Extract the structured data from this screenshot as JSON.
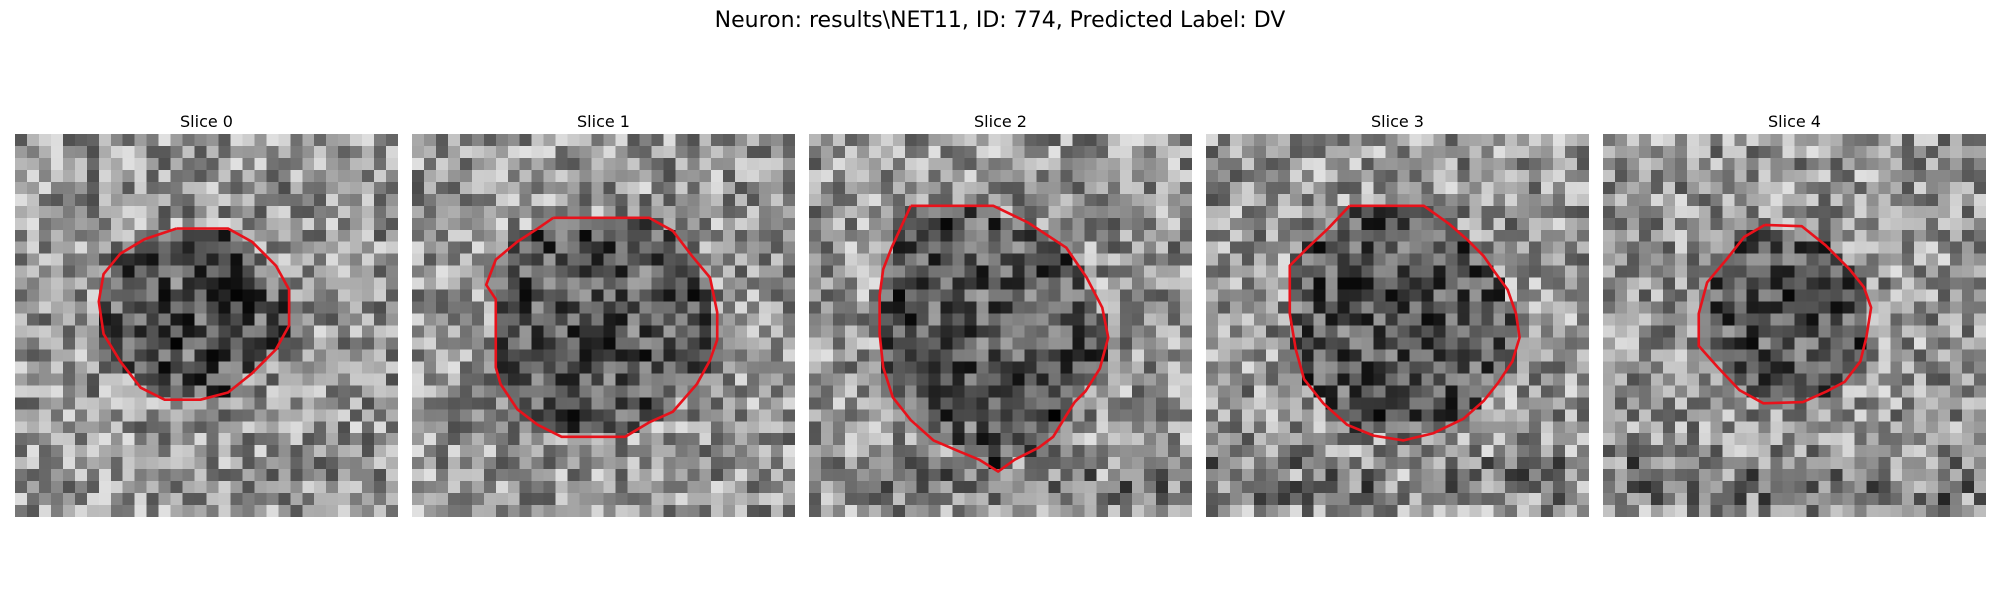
{
  "figure": {
    "title": "Neuron: results\\NET11, ID: 774, Predicted Label: DV",
    "contour_color": "#e8121b",
    "colormap": "gray",
    "grid_size": 32
  },
  "slices": [
    {
      "label": "Slice 0",
      "contour": [
        [
          13.5,
          7.9
        ],
        [
          17.8,
          7.9
        ],
        [
          19.8,
          9.0
        ],
        [
          21.8,
          11.0
        ],
        [
          22.9,
          13.0
        ],
        [
          22.9,
          16.0
        ],
        [
          21.8,
          18.0
        ],
        [
          19.8,
          20.0
        ],
        [
          17.8,
          21.6
        ],
        [
          15.5,
          22.2
        ],
        [
          12.5,
          22.2
        ],
        [
          10.5,
          21.2
        ],
        [
          8.8,
          19.0
        ],
        [
          7.4,
          16.7
        ],
        [
          7.0,
          14.0
        ],
        [
          7.4,
          11.7
        ],
        [
          8.8,
          10.0
        ],
        [
          10.8,
          8.8
        ],
        [
          13.5,
          7.9
        ]
      ]
    },
    {
      "label": "Slice 1",
      "contour": [
        [
          11.8,
          7.0
        ],
        [
          19.8,
          7.0
        ],
        [
          21.8,
          8.1
        ],
        [
          23.4,
          10.2
        ],
        [
          24.9,
          12.0
        ],
        [
          25.5,
          14.9
        ],
        [
          25.5,
          17.2
        ],
        [
          24.9,
          18.9
        ],
        [
          23.8,
          20.9
        ],
        [
          21.8,
          23.2
        ],
        [
          19.8,
          24.1
        ],
        [
          17.8,
          25.3
        ],
        [
          12.5,
          25.3
        ],
        [
          10.5,
          24.3
        ],
        [
          8.8,
          23.0
        ],
        [
          7.4,
          20.9
        ],
        [
          7.0,
          19.5
        ],
        [
          7.0,
          13.8
        ],
        [
          6.2,
          12.6
        ],
        [
          7.0,
          10.5
        ],
        [
          8.8,
          9.0
        ],
        [
          10.5,
          7.9
        ],
        [
          11.8,
          7.0
        ]
      ]
    },
    {
      "label": "Slice 2",
      "contour": [
        [
          8.5,
          6.0
        ],
        [
          15.4,
          6.0
        ],
        [
          18.3,
          7.4
        ],
        [
          21.5,
          9.5
        ],
        [
          23.2,
          12.0
        ],
        [
          24.5,
          14.5
        ],
        [
          25.0,
          17.0
        ],
        [
          24.3,
          19.6
        ],
        [
          23.1,
          21.5
        ],
        [
          22.2,
          22.4
        ],
        [
          21.5,
          23.5
        ],
        [
          20.4,
          25.3
        ],
        [
          19.2,
          26.2
        ],
        [
          17.2,
          27.2
        ],
        [
          15.8,
          28.2
        ],
        [
          14.2,
          27.2
        ],
        [
          12.5,
          26.5
        ],
        [
          10.4,
          25.6
        ],
        [
          8.5,
          23.9
        ],
        [
          7.0,
          22.0
        ],
        [
          6.2,
          19.5
        ],
        [
          5.9,
          16.7
        ],
        [
          5.9,
          13.5
        ],
        [
          6.2,
          11.3
        ],
        [
          6.9,
          9.5
        ],
        [
          8.5,
          6.0
        ]
      ]
    },
    {
      "label": "Slice 3",
      "contour": [
        [
          12.0,
          6.0
        ],
        [
          18.2,
          6.0
        ],
        [
          20.3,
          7.5
        ],
        [
          21.8,
          8.8
        ],
        [
          23.2,
          10.2
        ],
        [
          24.1,
          11.5
        ],
        [
          25.2,
          13.0
        ],
        [
          25.9,
          15.0
        ],
        [
          26.2,
          17.0
        ],
        [
          25.6,
          19.0
        ],
        [
          24.4,
          20.8
        ],
        [
          23.2,
          22.3
        ],
        [
          21.5,
          23.8
        ],
        [
          19.0,
          25.0
        ],
        [
          16.5,
          25.6
        ],
        [
          14.0,
          25.2
        ],
        [
          11.8,
          24.3
        ],
        [
          9.8,
          22.5
        ],
        [
          8.2,
          20.5
        ],
        [
          7.5,
          18.0
        ],
        [
          7.0,
          15.0
        ],
        [
          7.0,
          11.0
        ],
        [
          8.5,
          9.5
        ],
        [
          10.2,
          7.9
        ],
        [
          12.0,
          6.0
        ]
      ]
    },
    {
      "label": "Slice 4",
      "contour": [
        [
          13.5,
          7.6
        ],
        [
          16.6,
          7.7
        ],
        [
          18.6,
          9.3
        ],
        [
          20.6,
          11.3
        ],
        [
          21.8,
          12.8
        ],
        [
          22.4,
          14.5
        ],
        [
          22.0,
          17.0
        ],
        [
          21.5,
          19.0
        ],
        [
          20.2,
          20.7
        ],
        [
          18.7,
          21.5
        ],
        [
          16.7,
          22.4
        ],
        [
          13.4,
          22.5
        ],
        [
          11.4,
          21.4
        ],
        [
          9.6,
          19.5
        ],
        [
          8.0,
          17.7
        ],
        [
          8.0,
          15.0
        ],
        [
          8.7,
          12.4
        ],
        [
          10.3,
          10.5
        ],
        [
          11.8,
          8.6
        ],
        [
          13.5,
          7.6
        ]
      ]
    }
  ]
}
